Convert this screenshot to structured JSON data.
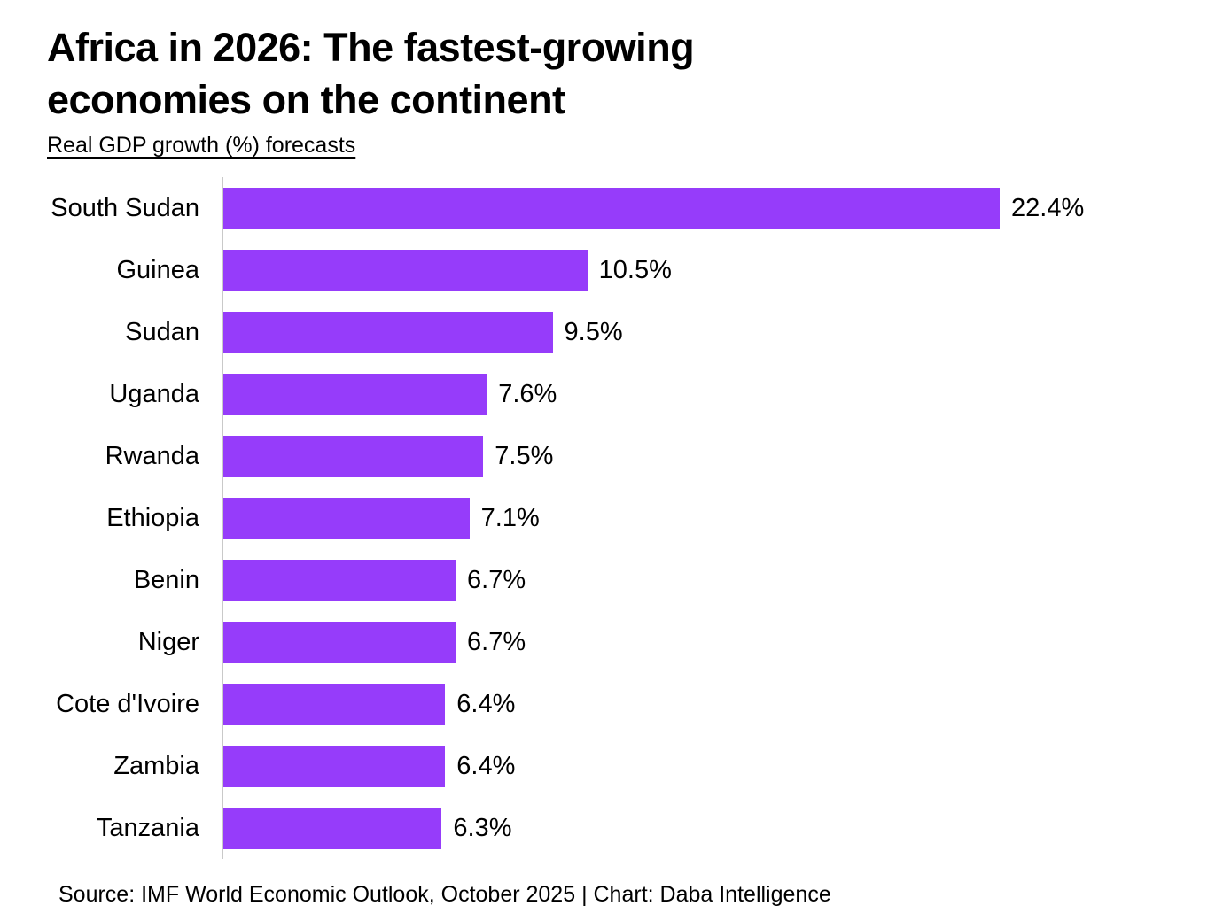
{
  "header": {
    "title": "Africa in 2026: The fastest-growing economies on the continent",
    "subtitle": "Real GDP growth (%) forecasts"
  },
  "chart_data": {
    "type": "bar",
    "orientation": "horizontal",
    "title": "Africa in 2026: The fastest-growing economies on the continent",
    "subtitle": "Real GDP growth (%) forecasts",
    "categories": [
      "South Sudan",
      "Guinea",
      "Sudan",
      "Uganda",
      "Rwanda",
      "Ethiopia",
      "Benin",
      "Niger",
      "Cote d'Ivoire",
      "Zambia",
      "Tanzania"
    ],
    "values": [
      22.4,
      10.5,
      9.5,
      7.6,
      7.5,
      7.1,
      6.7,
      6.7,
      6.4,
      6.4,
      6.3
    ],
    "value_labels": [
      "22.4%",
      "10.5%",
      "9.5%",
      "7.6%",
      "7.5%",
      "7.1%",
      "6.7%",
      "6.7%",
      "6.4%",
      "6.4%",
      "6.3%"
    ],
    "xlabel": "",
    "ylabel": "",
    "xlim": [
      0,
      22.4
    ],
    "grid": false,
    "legend": false,
    "bar_color": "#963cfa",
    "axis_line_color": "#c9c9c9",
    "label_color": "#000000"
  },
  "footer": {
    "source": "Source: IMF World Economic Outlook, October 2025 | Chart: Daba Intelligence"
  }
}
